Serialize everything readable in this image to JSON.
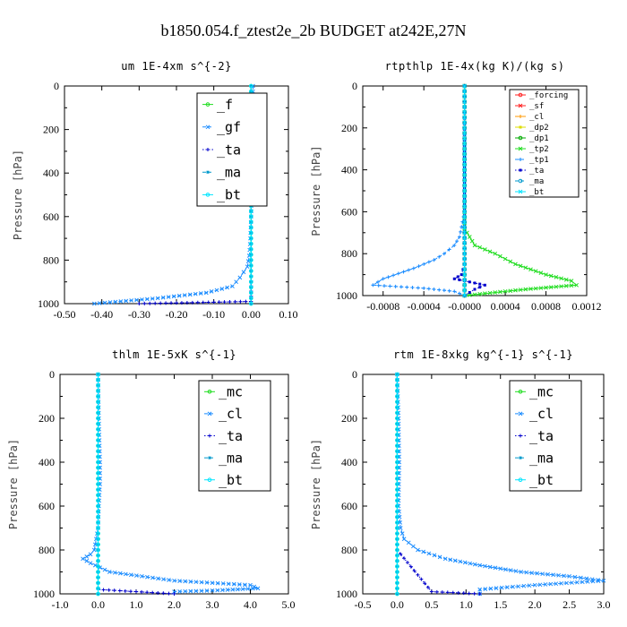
{
  "title": "b1850.054.f_ztest2e_2b  BUDGET at242E,27N",
  "colors": {
    "green": "#22dd22",
    "red": "#ff2222",
    "blue": "#0000cc",
    "lightblue": "#1a8cff",
    "cyan": "#00e5ff",
    "orange": "#ff9900",
    "yellow": "#dddd00",
    "darkgreen": "#00aa00",
    "teal": "#0099cc"
  },
  "chart_data": [
    {
      "type": "line",
      "title": "um  1E-4xm s^{-2}",
      "ylabel": "Pressure [hPa]",
      "xlim": [
        -0.5,
        0.1
      ],
      "ylim": [
        1000,
        0
      ],
      "xticks": [
        "-0.50",
        "-0.40",
        "-0.30",
        "-0.20",
        "-0.10",
        "0.00",
        "0.10"
      ],
      "xtick_values": [
        -0.5,
        -0.4,
        -0.3,
        -0.2,
        -0.1,
        0.0,
        0.1
      ],
      "yticks": [
        0,
        200,
        400,
        600,
        800,
        1000
      ],
      "grid": false,
      "legend_position": "top-right",
      "series": [
        {
          "name": "_f",
          "color": "#22dd22",
          "style": "solid",
          "x": [
            0,
            0,
            0,
            0,
            0,
            0,
            0,
            0,
            0,
            0,
            0,
            0
          ],
          "y": [
            0,
            100,
            200,
            300,
            400,
            500,
            600,
            700,
            800,
            900,
            950,
            1000
          ]
        },
        {
          "name": "_gf",
          "color": "#1a8cff",
          "style": "dashed",
          "x": [
            0.005,
            0.005,
            0.003,
            0.002,
            0.0,
            -0.002,
            -0.005,
            -0.01,
            -0.03,
            -0.05,
            -0.12,
            -0.25,
            -0.42
          ],
          "y": [
            0,
            150,
            300,
            450,
            600,
            700,
            780,
            830,
            880,
            920,
            950,
            975,
            1000
          ]
        },
        {
          "name": "_ta",
          "color": "#0000cc",
          "style": "dotted",
          "x": [
            0,
            0,
            0,
            0,
            0,
            0,
            -0.3
          ],
          "y": [
            0,
            200,
            400,
            600,
            800,
            990,
            1000
          ]
        },
        {
          "name": "_ma",
          "color": "#0099cc",
          "style": "dashed",
          "x": [
            0,
            0,
            0,
            0,
            0,
            0
          ],
          "y": [
            0,
            200,
            400,
            600,
            800,
            1000
          ]
        },
        {
          "name": "_bt",
          "color": "#00e5ff",
          "style": "solid",
          "x": [
            0,
            0,
            0,
            0,
            0,
            0
          ],
          "y": [
            0,
            200,
            400,
            600,
            800,
            1000
          ]
        }
      ]
    },
    {
      "type": "line",
      "title": "rtpthlp  1E-4x(kg K)/(kg s)",
      "ylabel": "Pressure [hPa]",
      "xlim": [
        -0.001,
        0.0012
      ],
      "ylim": [
        1000,
        0
      ],
      "xticks": [
        "-0.0008",
        "-0.0004",
        "-0.0000",
        "0.0004",
        "0.0008",
        "0.0012"
      ],
      "xtick_values": [
        -0.0008,
        -0.0004,
        0.0,
        0.0004,
        0.0008,
        0.0012
      ],
      "yticks": [
        0,
        200,
        400,
        600,
        800,
        1000
      ],
      "grid": false,
      "legend_position": "top-right",
      "series": [
        {
          "name": "_forcing",
          "color": "#ff2222",
          "style": "solid",
          "x": [
            0,
            0,
            0,
            0,
            0,
            0
          ],
          "y": [
            0,
            200,
            400,
            600,
            800,
            1000
          ]
        },
        {
          "name": "_sf",
          "color": "#ff2222",
          "style": "solid",
          "x": [
            0,
            0,
            0,
            0,
            0,
            0
          ],
          "y": [
            0,
            200,
            400,
            600,
            800,
            1000
          ]
        },
        {
          "name": "_cl",
          "color": "#ff9900",
          "style": "solid",
          "x": [
            0,
            0,
            0,
            0,
            0,
            0
          ],
          "y": [
            0,
            200,
            400,
            600,
            800,
            1000
          ]
        },
        {
          "name": "_dp2",
          "color": "#dddd00",
          "style": "solid",
          "x": [
            0,
            0,
            0,
            0,
            0,
            0
          ],
          "y": [
            0,
            200,
            400,
            600,
            800,
            1000
          ]
        },
        {
          "name": "_dp1",
          "color": "#00aa00",
          "style": "solid",
          "x": [
            0,
            0,
            0,
            0,
            0,
            0
          ],
          "y": [
            0,
            200,
            400,
            600,
            800,
            1000
          ]
        },
        {
          "name": "_tp2",
          "color": "#22dd22",
          "style": "solid",
          "x": [
            0,
            0,
            0,
            5e-05,
            0.0001,
            0.0003,
            0.0005,
            0.0008,
            0.00105,
            0.0011,
            0.0006,
            0.0002,
            0.0
          ],
          "y": [
            0,
            500,
            680,
            720,
            760,
            800,
            850,
            900,
            930,
            950,
            970,
            990,
            1000
          ]
        },
        {
          "name": "_tp1",
          "color": "#1a8cff",
          "style": "dashed",
          "x": [
            0,
            0,
            -5e-05,
            -0.0001,
            -0.0002,
            -0.0003,
            -0.0005,
            -0.0008,
            -0.0009,
            -0.0004,
            -0.0001,
            0.0
          ],
          "y": [
            0,
            600,
            720,
            760,
            800,
            830,
            870,
            920,
            950,
            965,
            980,
            1000
          ]
        },
        {
          "name": "_ta",
          "color": "#0000cc",
          "style": "dotted",
          "x": [
            0,
            0,
            -3e-05,
            -0.0001,
            5e-05,
            0.0002,
            0.0001,
            0.0
          ],
          "y": [
            0,
            850,
            900,
            920,
            935,
            950,
            970,
            1000
          ]
        },
        {
          "name": "_ma",
          "color": "#0099cc",
          "style": "dashed",
          "x": [
            0,
            0,
            0,
            0,
            0,
            0
          ],
          "y": [
            0,
            200,
            400,
            600,
            800,
            1000
          ]
        },
        {
          "name": "_bt",
          "color": "#00e5ff",
          "style": "solid",
          "x": [
            0,
            0,
            0,
            0,
            0,
            0
          ],
          "y": [
            0,
            200,
            400,
            600,
            800,
            1000
          ]
        }
      ]
    },
    {
      "type": "line",
      "title": "thlm  1E-5xK s^{-1}",
      "ylabel": "Pressure [hPa]",
      "xlim": [
        -1.0,
        5.0
      ],
      "ylim": [
        1000,
        0
      ],
      "xticks": [
        "-1.0",
        "0.0",
        "1.0",
        "2.0",
        "3.0",
        "4.0",
        "5.0"
      ],
      "xtick_values": [
        -1.0,
        0.0,
        1.0,
        2.0,
        3.0,
        4.0,
        5.0
      ],
      "yticks": [
        0,
        200,
        400,
        600,
        800,
        1000
      ],
      "grid": false,
      "legend_position": "top-right",
      "series": [
        {
          "name": "_mc",
          "color": "#22dd22",
          "style": "solid",
          "x": [
            0,
            0,
            0,
            0,
            0,
            0,
            0
          ],
          "y": [
            0,
            200,
            400,
            600,
            800,
            900,
            1000
          ]
        },
        {
          "name": "_cl",
          "color": "#1a8cff",
          "style": "dashed",
          "x": [
            0,
            0.02,
            0.05,
            0.05,
            0.02,
            0.0,
            -0.05,
            -0.1,
            -0.2,
            -0.4,
            -0.2,
            0.3,
            2.0,
            4.0,
            4.2,
            3.0,
            2.0
          ],
          "y": [
            0,
            200,
            400,
            500,
            600,
            700,
            750,
            800,
            820,
            840,
            860,
            900,
            940,
            960,
            975,
            985,
            990
          ]
        },
        {
          "name": "_ta",
          "color": "#0000cc",
          "style": "dotted",
          "x": [
            0,
            0,
            0,
            0,
            0,
            0.0,
            2.0
          ],
          "y": [
            0,
            200,
            400,
            600,
            800,
            980,
            1000
          ]
        },
        {
          "name": "_ma",
          "color": "#0099cc",
          "style": "dashed",
          "x": [
            0,
            0,
            0,
            0,
            0,
            0
          ],
          "y": [
            0,
            200,
            400,
            600,
            800,
            1000
          ]
        },
        {
          "name": "_bt",
          "color": "#00e5ff",
          "style": "solid",
          "x": [
            0,
            0,
            0,
            0,
            0,
            0
          ],
          "y": [
            0,
            200,
            400,
            600,
            800,
            1000
          ]
        }
      ]
    },
    {
      "type": "line",
      "title": "rtm  1E-8xkg kg^{-1} s^{-1}",
      "ylabel": "Pressure [hPa]",
      "xlim": [
        -0.5,
        3.0
      ],
      "ylim": [
        1000,
        0
      ],
      "xticks": [
        "-0.5",
        "0.0",
        "0.5",
        "1.0",
        "1.5",
        "2.0",
        "2.5",
        "3.0"
      ],
      "xtick_values": [
        -0.5,
        0.0,
        0.5,
        1.0,
        1.5,
        2.0,
        2.5,
        3.0
      ],
      "yticks": [
        0,
        200,
        400,
        600,
        800,
        1000
      ],
      "grid": false,
      "legend_position": "top-right",
      "series": [
        {
          "name": "_mc",
          "color": "#22dd22",
          "style": "solid",
          "x": [
            0,
            0,
            0,
            0,
            0,
            0
          ],
          "y": [
            0,
            200,
            400,
            600,
            800,
            1000
          ]
        },
        {
          "name": "_cl",
          "color": "#1a8cff",
          "style": "dashed",
          "x": [
            0,
            0.02,
            0.03,
            0.02,
            0.05,
            0.1,
            0.3,
            0.7,
            1.2,
            1.8,
            2.5,
            3.0,
            2.0,
            1.2,
            1.2
          ],
          "y": [
            0,
            200,
            400,
            600,
            700,
            750,
            800,
            840,
            870,
            900,
            920,
            940,
            960,
            980,
            1000
          ]
        },
        {
          "name": "_ta",
          "color": "#0000cc",
          "style": "dotted",
          "x": [
            0,
            0,
            0,
            0,
            0,
            0.5,
            1.2
          ],
          "y": [
            0,
            200,
            400,
            600,
            800,
            990,
            1000
          ]
        },
        {
          "name": "_ma",
          "color": "#0099cc",
          "style": "dashed",
          "x": [
            0,
            0,
            0,
            0,
            0,
            0
          ],
          "y": [
            0,
            200,
            400,
            600,
            800,
            1000
          ]
        },
        {
          "name": "_bt",
          "color": "#00e5ff",
          "style": "solid",
          "x": [
            0,
            0,
            0,
            0,
            0,
            0
          ],
          "y": [
            0,
            200,
            400,
            600,
            800,
            1000
          ]
        }
      ]
    }
  ]
}
